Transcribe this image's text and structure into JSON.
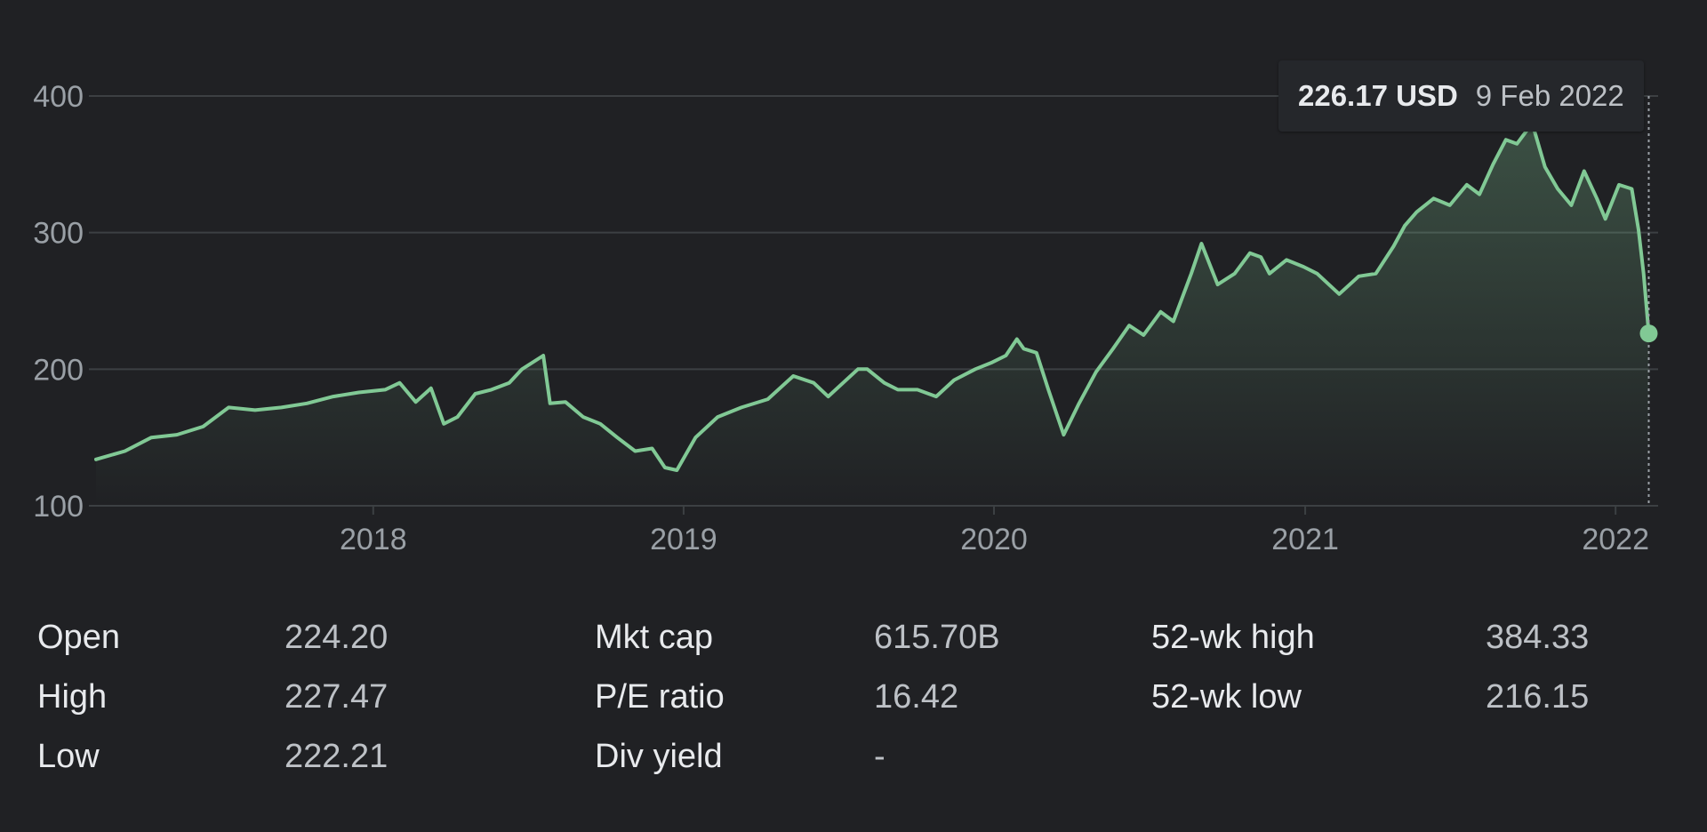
{
  "tooltip": {
    "price": "226.17 USD",
    "date": "9 Feb 2022"
  },
  "colors": {
    "line": "#81c995",
    "grid": "#3c4043",
    "background": "#202124"
  },
  "chart_data": {
    "type": "area",
    "title": "",
    "xlabel": "",
    "ylabel": "",
    "ylim": [
      100,
      400
    ],
    "y_ticks": [
      "100",
      "200",
      "300",
      "400"
    ],
    "x_ticks": [
      {
        "label": "2018",
        "value": "2018-01-01"
      },
      {
        "label": "2019",
        "value": "2019-01-01"
      },
      {
        "label": "2020",
        "value": "2020-01-01"
      },
      {
        "label": "2021",
        "value": "2021-01-01"
      },
      {
        "label": "2022",
        "value": "2022-01-01"
      }
    ],
    "xlim": [
      "2017-02-09",
      "2022-02-20"
    ],
    "grid": true,
    "series": [
      {
        "x": [
          "2017-02-09",
          "2017-03-15",
          "2017-04-15",
          "2017-05-15",
          "2017-06-15",
          "2017-07-15",
          "2017-08-15",
          "2017-09-15",
          "2017-10-15",
          "2017-11-15",
          "2017-12-15",
          "2018-01-15",
          "2018-02-01",
          "2018-02-20",
          "2018-03-10",
          "2018-03-25",
          "2018-04-10",
          "2018-05-01",
          "2018-05-20",
          "2018-06-10",
          "2018-06-25",
          "2018-07-20",
          "2018-07-28",
          "2018-08-15",
          "2018-09-05",
          "2018-09-25",
          "2018-10-15",
          "2018-11-05",
          "2018-11-25",
          "2018-12-10",
          "2018-12-24",
          "2019-01-15",
          "2019-02-10",
          "2019-03-10",
          "2019-04-10",
          "2019-05-10",
          "2019-06-03",
          "2019-06-20",
          "2019-07-25",
          "2019-08-05",
          "2019-08-25",
          "2019-09-10",
          "2019-10-03",
          "2019-10-25",
          "2019-11-15",
          "2019-12-10",
          "2019-12-30",
          "2020-01-15",
          "2020-01-28",
          "2020-02-05",
          "2020-02-20",
          "2020-03-05",
          "2020-03-23",
          "2020-04-10",
          "2020-04-30",
          "2020-05-20",
          "2020-06-08",
          "2020-06-25",
          "2020-07-15",
          "2020-07-30",
          "2020-08-20",
          "2020-09-01",
          "2020-09-20",
          "2020-10-10",
          "2020-10-28",
          "2020-11-10",
          "2020-11-20",
          "2020-12-10",
          "2020-12-30",
          "2021-01-15",
          "2021-02-10",
          "2021-03-05",
          "2021-03-25",
          "2021-04-15",
          "2021-04-28",
          "2021-05-12",
          "2021-06-01",
          "2021-06-20",
          "2021-07-10",
          "2021-07-25",
          "2021-08-10",
          "2021-08-25",
          "2021-09-07",
          "2021-09-25",
          "2021-10-10",
          "2021-10-25",
          "2021-11-10",
          "2021-11-25",
          "2021-12-10",
          "2021-12-20",
          "2022-01-05",
          "2022-01-20",
          "2022-01-28",
          "2022-02-03",
          "2022-02-09"
        ],
        "y": [
          134,
          140,
          150,
          152,
          158,
          172,
          170,
          172,
          175,
          180,
          183,
          185,
          190,
          176,
          186,
          160,
          165,
          182,
          185,
          190,
          200,
          210,
          175,
          176,
          165,
          160,
          150,
          140,
          142,
          128,
          126,
          150,
          165,
          172,
          178,
          195,
          190,
          180,
          200,
          200,
          190,
          185,
          185,
          180,
          192,
          200,
          205,
          210,
          222,
          215,
          212,
          185,
          152,
          175,
          198,
          215,
          232,
          225,
          242,
          235,
          270,
          292,
          262,
          270,
          285,
          282,
          270,
          280,
          275,
          270,
          255,
          268,
          270,
          290,
          305,
          315,
          325,
          320,
          335,
          328,
          350,
          368,
          365,
          380,
          348,
          332,
          320,
          345,
          325,
          310,
          335,
          332,
          302,
          270,
          226.17
        ]
      }
    ]
  },
  "stats": {
    "row1": {
      "label1": "Open",
      "value1": "224.20",
      "label2": "Mkt cap",
      "value2": "615.70B",
      "label3": "52-wk high",
      "value3": "384.33"
    },
    "row2": {
      "label1": "High",
      "value1": "227.47",
      "label2": "P/E ratio",
      "value2": "16.42",
      "label3": "52-wk low",
      "value3": "216.15"
    },
    "row3": {
      "label1": "Low",
      "value1": "222.21",
      "label2": "Div yield",
      "value2": "-"
    }
  }
}
